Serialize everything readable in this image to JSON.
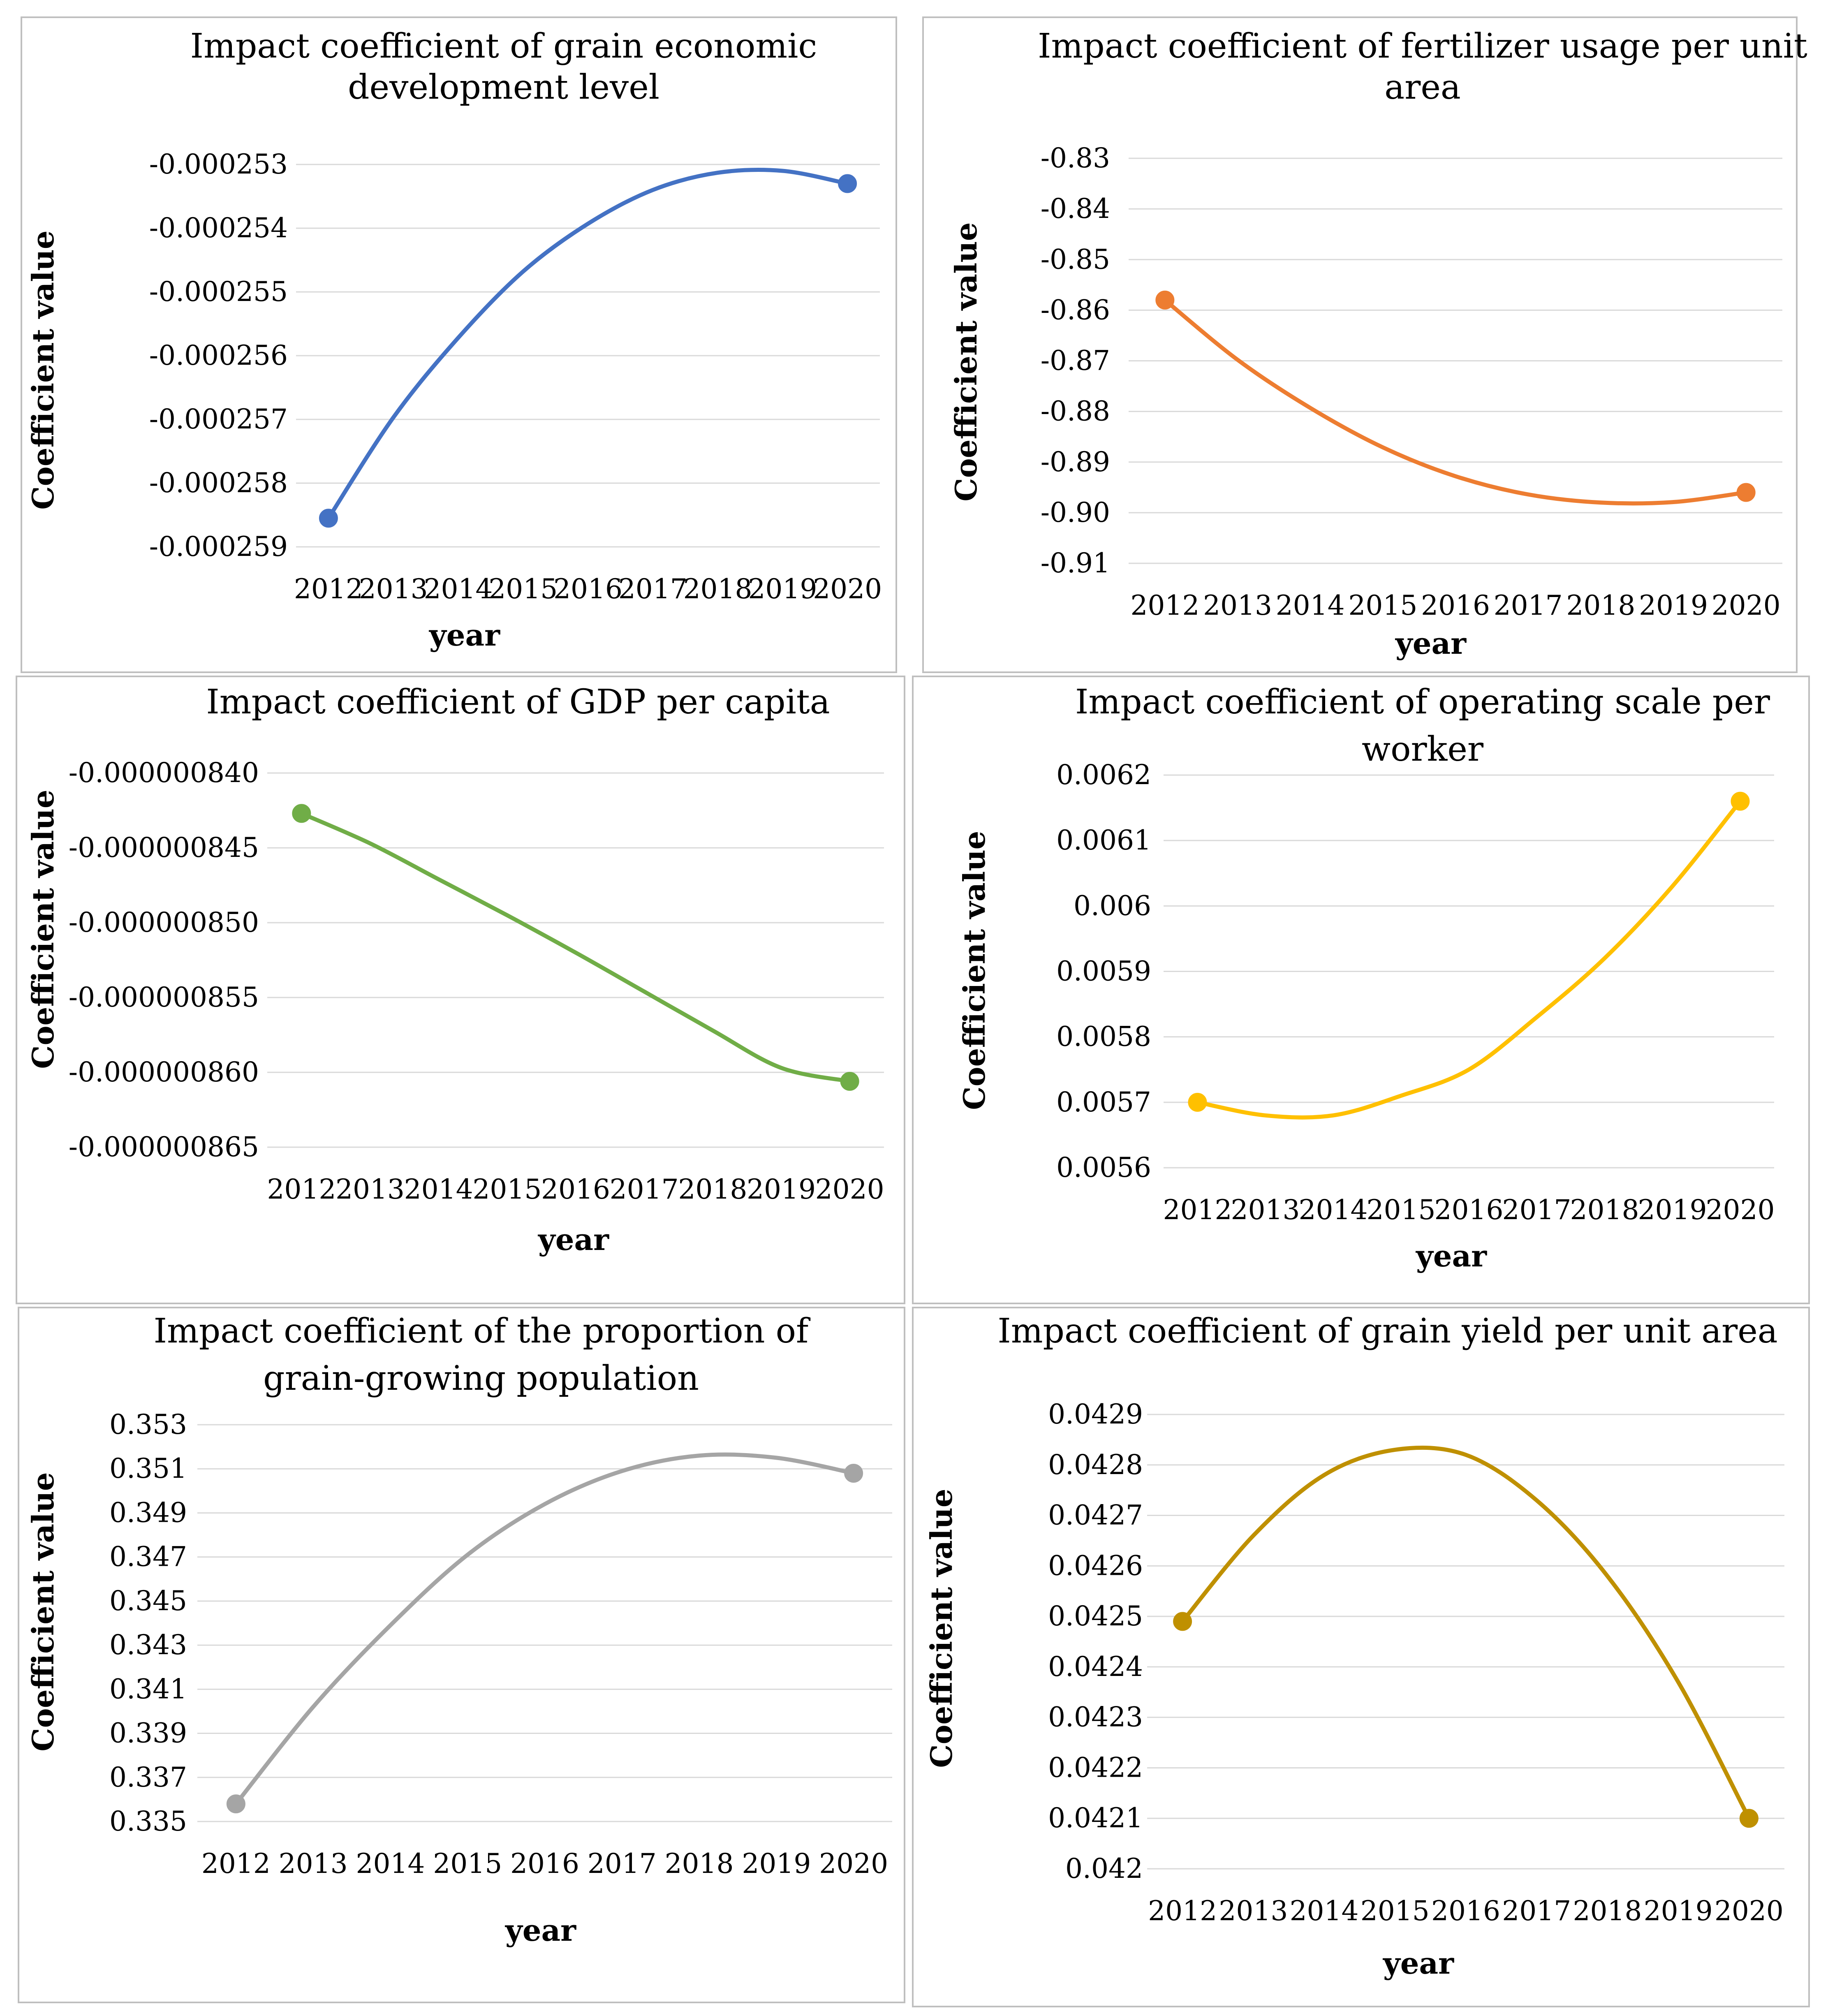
{
  "chart_data": [
    {
      "type": "line",
      "title": [
        "Impact coefficient of grain economic",
        "development level"
      ],
      "xlabel": "year",
      "ylabel": "Coefficient value",
      "color": "#4472C4",
      "categories": [
        "2012",
        "2013",
        "2014",
        "2015",
        "2016",
        "2017",
        "2018",
        "2019",
        "2020"
      ],
      "values": [
        -0.00025855,
        -0.00025697,
        -0.00025572,
        -0.00025468,
        -0.00025393,
        -0.0002534,
        -0.00025313,
        -0.0002531,
        -0.0002533
      ],
      "ylim": [
        -0.000259,
        -0.000253
      ],
      "yticks": [
        "-0.000253",
        "-0.000254",
        "-0.000255",
        "-0.000256",
        "-0.000257",
        "-0.000258",
        "-0.000259"
      ],
      "grid": true,
      "markers": "endpoints"
    },
    {
      "type": "line",
      "title": [
        "Impact coefficient of fertilizer usage per unit",
        "area"
      ],
      "xlabel": "year",
      "ylabel": "Coefficient value",
      "color": "#ED7D31",
      "categories": [
        "2012",
        "2013",
        "2014",
        "2015",
        "2016",
        "2017",
        "2018",
        "2019",
        "2020"
      ],
      "values": [
        -0.858,
        -0.8698,
        -0.8793,
        -0.8871,
        -0.8928,
        -0.8964,
        -0.898,
        -0.8979,
        -0.896
      ],
      "ylim": [
        -0.91,
        -0.83
      ],
      "yticks": [
        "-0.83",
        "-0.84",
        "-0.85",
        "-0.86",
        "-0.87",
        "-0.88",
        "-0.89",
        "-0.90",
        "-0.91"
      ],
      "grid": true,
      "markers": "endpoints"
    },
    {
      "type": "line",
      "title": [
        "Impact coefficient of GDP per capita"
      ],
      "xlabel": "year",
      "ylabel": "Coefficient value",
      "color": "#70AD47",
      "categories": [
        "2012",
        "2013",
        "2014",
        "2015",
        "2016",
        "2017",
        "2018",
        "2019",
        "2020"
      ],
      "values": [
        -8.427e-07,
        -8.447e-07,
        -8.471e-07,
        -8.495e-07,
        -8.52e-07,
        -8.546e-07,
        -8.572e-07,
        -8.597e-07,
        -8.606e-07
      ],
      "ylim": [
        -8.65e-07,
        -8.4e-07
      ],
      "yticks": [
        "-0.000000840",
        "-0.000000845",
        "-0.000000850",
        "-0.000000855",
        "-0.000000860",
        "-0.000000865"
      ],
      "grid": true,
      "markers": "endpoints"
    },
    {
      "type": "line",
      "title": [
        "Impact coefficient of operating scale per",
        "worker"
      ],
      "xlabel": "year",
      "ylabel": "Coefficient value",
      "color": "#FFC000",
      "categories": [
        "2012",
        "2013",
        "2014",
        "2015",
        "2016",
        "2017",
        "2018",
        "2019",
        "2020"
      ],
      "values": [
        0.0057,
        0.00568,
        0.00568,
        0.00571,
        0.00575,
        0.00583,
        0.00592,
        0.00603,
        0.00616
      ],
      "ylim": [
        0.0056,
        0.0062
      ],
      "yticks": [
        "0.0062",
        "0.0061",
        "0.006",
        "0.0059",
        "0.0058",
        "0.0057",
        "0.0056"
      ],
      "grid": true,
      "markers": "endpoints"
    },
    {
      "type": "line",
      "title": [
        "Impact coefficient of the proportion of",
        "grain-growing population"
      ],
      "xlabel": "year",
      "ylabel": "Coefficient value",
      "color": "#A5A5A5",
      "categories": [
        "2012",
        "2013",
        "2014",
        "2015",
        "2016",
        "2017",
        "2018",
        "2019",
        "2020"
      ],
      "values": [
        0.3358,
        0.3402,
        0.3439,
        0.3471,
        0.3494,
        0.3509,
        0.3516,
        0.3515,
        0.3508
      ],
      "ylim": [
        0.335,
        0.353
      ],
      "yticks": [
        "0.353",
        "0.351",
        "0.349",
        "0.347",
        "0.345",
        "0.343",
        "0.341",
        "0.339",
        "0.337",
        "0.335"
      ],
      "grid": true,
      "markers": "endpoints"
    },
    {
      "type": "line",
      "title": [
        "Impact coefficient of grain yield per unit area"
      ],
      "xlabel": "year",
      "ylabel": "Coefficient value",
      "color": "#BF9000",
      "categories": [
        "2012",
        "2013",
        "2014",
        "2015",
        "2016",
        "2017",
        "2018",
        "2019",
        "2020"
      ],
      "values": [
        0.04249,
        0.04266,
        0.04278,
        0.04283,
        0.04282,
        0.04273,
        0.04258,
        0.04237,
        0.0421
      ],
      "ylim": [
        0.042,
        0.0429
      ],
      "yticks": [
        "0.0429",
        "0.0428",
        "0.0427",
        "0.0426",
        "0.0425",
        "0.0424",
        "0.0423",
        "0.0422",
        "0.0421",
        "0.042"
      ],
      "grid": true,
      "markers": "endpoints"
    }
  ]
}
